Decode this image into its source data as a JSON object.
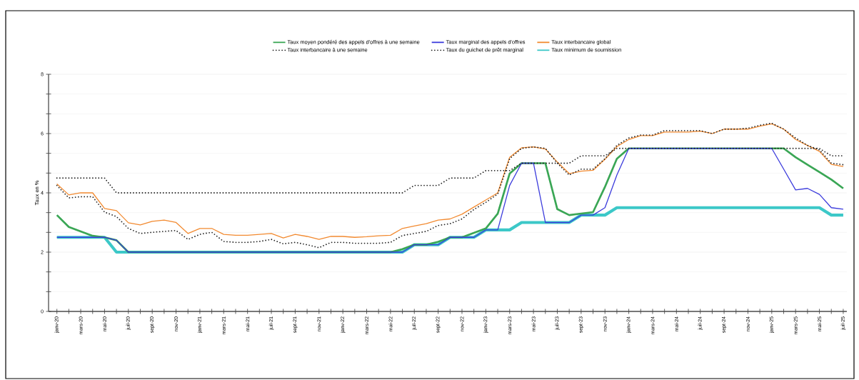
{
  "chart_data": {
    "type": "line",
    "ylabel": "Taux en %",
    "categories": [
      "janv-20",
      null,
      "mars-20",
      null,
      "mai-20",
      null,
      "juil-20",
      null,
      "sept-20",
      null,
      "nov-20",
      null,
      "janv-21",
      null,
      "mars-21",
      null,
      "mai-21",
      null,
      "juil-21",
      null,
      "sept-21",
      null,
      "nov-21",
      null,
      "janv-22",
      null,
      "mars-22",
      null,
      "mai-22",
      null,
      "juil-22",
      null,
      "sept-22",
      null,
      "nov-22",
      null,
      "janv-23",
      null,
      "mars-23",
      null,
      "mai-23",
      null,
      "juil-23",
      null,
      "sept-23",
      null,
      "nov-23",
      null,
      "janv-24",
      null,
      "mars-24",
      null,
      "mai-24",
      null,
      "juil-24",
      null,
      "sept-24",
      null,
      "nov-24",
      null,
      "janv-25",
      null,
      "mars-25",
      null,
      "mai-25",
      null,
      "juil-25"
    ],
    "ylim": [
      0,
      8
    ],
    "yticks": [
      0,
      2,
      4,
      6,
      8
    ],
    "grid": "y",
    "legend": "top",
    "marker": "none",
    "series": [
      {
        "name": "Taux moyen pondéré des appels d'offres à une semaine",
        "color": "#3aa655",
        "line_style": "solid",
        "values": [
          3.25,
          2.85,
          2.7,
          2.55,
          2.5,
          2.4,
          2.0,
          2.0,
          2.0,
          2.0,
          2.0,
          2.0,
          2.0,
          2.0,
          2.0,
          2.0,
          2.0,
          2.0,
          2.0,
          2.0,
          2.0,
          2.0,
          2.0,
          2.0,
          2.0,
          2.0,
          2.0,
          2.0,
          2.0,
          2.1,
          2.25,
          2.25,
          2.35,
          2.5,
          2.5,
          2.65,
          2.8,
          3.3,
          4.65,
          5.0,
          5.0,
          5.0,
          3.45,
          3.25,
          3.3,
          3.35,
          4.2,
          5.15,
          5.5,
          5.5,
          5.5,
          5.5,
          5.5,
          5.5,
          5.5,
          5.5,
          5.5,
          5.5,
          5.5,
          5.5,
          5.5,
          5.5,
          5.2,
          4.95,
          4.7,
          4.45,
          4.15
        ]
      },
      {
        "name": "Taux marginal des appels d'offres",
        "color": "#3b3bdc",
        "line_style": "solid",
        "values": [
          2.5,
          2.5,
          2.5,
          2.5,
          2.5,
          2.4,
          2.0,
          2.0,
          2.0,
          2.0,
          2.0,
          2.0,
          2.0,
          2.0,
          2.0,
          2.0,
          2.0,
          2.0,
          2.0,
          2.0,
          2.0,
          2.0,
          2.0,
          2.0,
          2.0,
          2.0,
          2.0,
          2.0,
          2.0,
          2.0,
          2.25,
          2.25,
          2.25,
          2.5,
          2.5,
          2.5,
          2.75,
          2.75,
          4.25,
          5.0,
          5.0,
          3.0,
          3.0,
          3.0,
          3.25,
          3.25,
          3.5,
          4.6,
          5.5,
          5.5,
          5.5,
          5.5,
          5.5,
          5.5,
          5.5,
          5.5,
          5.5,
          5.5,
          5.5,
          5.5,
          5.5,
          4.8,
          4.1,
          4.15,
          3.95,
          3.5,
          3.45
        ]
      },
      {
        "name": "Taux interbancaire global",
        "color": "#f28a30",
        "line_style": "solid",
        "values": [
          4.3,
          3.93,
          4.0,
          4.0,
          3.47,
          3.4,
          2.99,
          2.92,
          3.04,
          3.08,
          3.0,
          2.63,
          2.8,
          2.8,
          2.6,
          2.57,
          2.57,
          2.6,
          2.63,
          2.48,
          2.6,
          2.53,
          2.43,
          2.53,
          2.53,
          2.5,
          2.52,
          2.55,
          2.57,
          2.8,
          2.88,
          2.96,
          3.08,
          3.12,
          3.28,
          3.52,
          3.76,
          4.0,
          5.2,
          5.52,
          5.55,
          5.48,
          5.04,
          4.65,
          4.73,
          4.76,
          5.13,
          5.56,
          5.8,
          5.93,
          5.93,
          6.05,
          6.05,
          6.05,
          6.08,
          6.0,
          6.15,
          6.15,
          6.15,
          6.25,
          6.33,
          6.15,
          5.8,
          5.6,
          5.4,
          4.96,
          4.89
        ]
      },
      {
        "name": "Taux interbancaire à une semaine",
        "color": "#222222",
        "line_style": "dotted",
        "values": [
          4.25,
          3.83,
          3.87,
          3.87,
          3.35,
          3.2,
          2.8,
          2.63,
          2.67,
          2.7,
          2.73,
          2.43,
          2.6,
          2.67,
          2.36,
          2.33,
          2.33,
          2.36,
          2.43,
          2.28,
          2.33,
          2.25,
          2.15,
          2.33,
          2.33,
          2.3,
          2.3,
          2.3,
          2.33,
          2.56,
          2.63,
          2.7,
          2.9,
          2.96,
          3.12,
          3.44,
          3.68,
          3.96,
          5.15,
          5.5,
          5.55,
          5.5,
          5.0,
          4.6,
          4.8,
          4.8,
          5.15,
          5.6,
          5.85,
          5.95,
          5.95,
          6.1,
          6.1,
          6.1,
          6.1,
          6.0,
          6.15,
          6.15,
          6.18,
          6.28,
          6.35,
          6.15,
          5.85,
          5.6,
          5.45,
          5.0,
          4.95
        ]
      },
      {
        "name": "Taux du guichet de prêt marginal",
        "color": "#222222",
        "line_style": "dotted",
        "values": [
          4.5,
          4.5,
          4.5,
          4.5,
          4.5,
          4.0,
          4.0,
          4.0,
          4.0,
          4.0,
          4.0,
          4.0,
          4.0,
          4.0,
          4.0,
          4.0,
          4.0,
          4.0,
          4.0,
          4.0,
          4.0,
          4.0,
          4.0,
          4.0,
          4.0,
          4.0,
          4.0,
          4.0,
          4.0,
          4.0,
          4.25,
          4.25,
          4.25,
          4.5,
          4.5,
          4.5,
          4.75,
          4.75,
          4.75,
          5.0,
          5.0,
          5.0,
          5.0,
          5.0,
          5.25,
          5.25,
          5.25,
          5.5,
          5.5,
          5.5,
          5.5,
          5.5,
          5.5,
          5.5,
          5.5,
          5.5,
          5.5,
          5.5,
          5.5,
          5.5,
          5.5,
          5.5,
          5.5,
          5.5,
          5.5,
          5.25,
          5.25
        ]
      },
      {
        "name": "Taux minimum de soumission",
        "color": "#3cc8c8",
        "line_style": "solid",
        "values": [
          2.5,
          2.5,
          2.5,
          2.5,
          2.5,
          2.0,
          2.0,
          2.0,
          2.0,
          2.0,
          2.0,
          2.0,
          2.0,
          2.0,
          2.0,
          2.0,
          2.0,
          2.0,
          2.0,
          2.0,
          2.0,
          2.0,
          2.0,
          2.0,
          2.0,
          2.0,
          2.0,
          2.0,
          2.0,
          2.0,
          2.25,
          2.25,
          2.25,
          2.5,
          2.5,
          2.5,
          2.75,
          2.75,
          2.75,
          3.0,
          3.0,
          3.0,
          3.0,
          3.0,
          3.25,
          3.25,
          3.25,
          3.5,
          3.5,
          3.5,
          3.5,
          3.5,
          3.5,
          3.5,
          3.5,
          3.5,
          3.5,
          3.5,
          3.5,
          3.5,
          3.5,
          3.5,
          3.5,
          3.5,
          3.5,
          3.25,
          3.25
        ]
      }
    ]
  }
}
